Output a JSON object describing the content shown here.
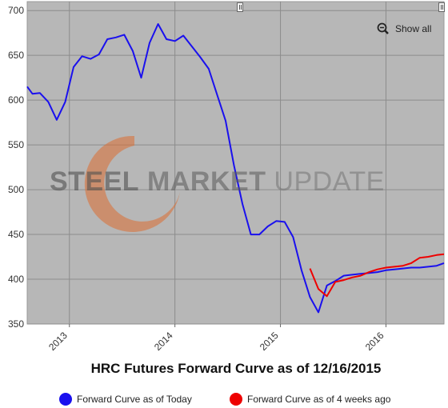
{
  "chart_data": {
    "type": "line",
    "title": "HRC Futures Forward Curve as of 12/16/2015",
    "ylim": [
      350,
      710
    ],
    "yticks": [
      350,
      400,
      450,
      500,
      550,
      600,
      650,
      700
    ],
    "xlim": [
      2012.6,
      2016.55
    ],
    "xticks": [
      {
        "label": "2013",
        "x": 2013.0
      },
      {
        "label": "2014",
        "x": 2014.0
      },
      {
        "label": "2015",
        "x": 2015.0
      },
      {
        "label": "2016",
        "x": 2016.0
      }
    ],
    "grid": true,
    "legend_position": "bottom",
    "series": [
      {
        "name": "Forward Curve as of Today",
        "color": "#1a10ee",
        "x": [
          2012.6,
          2012.65,
          2012.72,
          2012.8,
          2012.88,
          2012.96,
          2013.04,
          2013.12,
          2013.2,
          2013.28,
          2013.36,
          2013.44,
          2013.52,
          2013.6,
          2013.68,
          2013.76,
          2013.84,
          2013.92,
          2014.0,
          2014.08,
          2014.16,
          2014.24,
          2014.32,
          2014.4,
          2014.48,
          2014.56,
          2014.64,
          2014.72,
          2014.8,
          2014.88,
          2014.96,
          2015.04,
          2015.12,
          2015.2,
          2015.28,
          2015.36,
          2015.44,
          2015.52,
          2015.6,
          2015.68,
          2015.76,
          2015.84,
          2015.92,
          2016.0,
          2016.08,
          2016.16,
          2016.24,
          2016.32,
          2016.4,
          2016.48,
          2016.55
        ],
        "values": [
          615,
          607,
          608,
          598,
          578,
          598,
          637,
          649,
          646,
          651,
          668,
          670,
          673,
          655,
          625,
          664,
          685,
          668,
          666,
          672,
          660,
          648,
          635,
          606,
          577,
          527,
          484,
          450,
          450,
          459,
          465,
          464,
          447,
          410,
          380,
          363,
          393,
          398,
          404,
          405,
          406,
          407,
          408,
          410,
          411,
          412,
          413,
          413,
          414,
          415,
          418
        ]
      },
      {
        "name": "Forward Curve as of 4 weeks ago",
        "color": "#ee0000",
        "x": [
          2015.28,
          2015.36,
          2015.44,
          2015.52,
          2015.6,
          2015.68,
          2015.76,
          2015.84,
          2015.92,
          2016.0,
          2016.08,
          2016.16,
          2016.24,
          2016.32,
          2016.4,
          2016.48,
          2016.55
        ],
        "values": [
          412,
          389,
          381,
          397,
          399,
          402,
          404,
          408,
          411,
          413,
          414,
          415,
          418,
          424,
          425,
          427,
          428
        ]
      }
    ]
  },
  "controls": {
    "show_all": "Show all",
    "zoom_icon": "zoom-out-icon",
    "handle_icon": "scroll-handle-icon"
  },
  "watermark": {
    "word1": "STEEL",
    "word2": "MARKET",
    "word3": "UPDATE"
  }
}
